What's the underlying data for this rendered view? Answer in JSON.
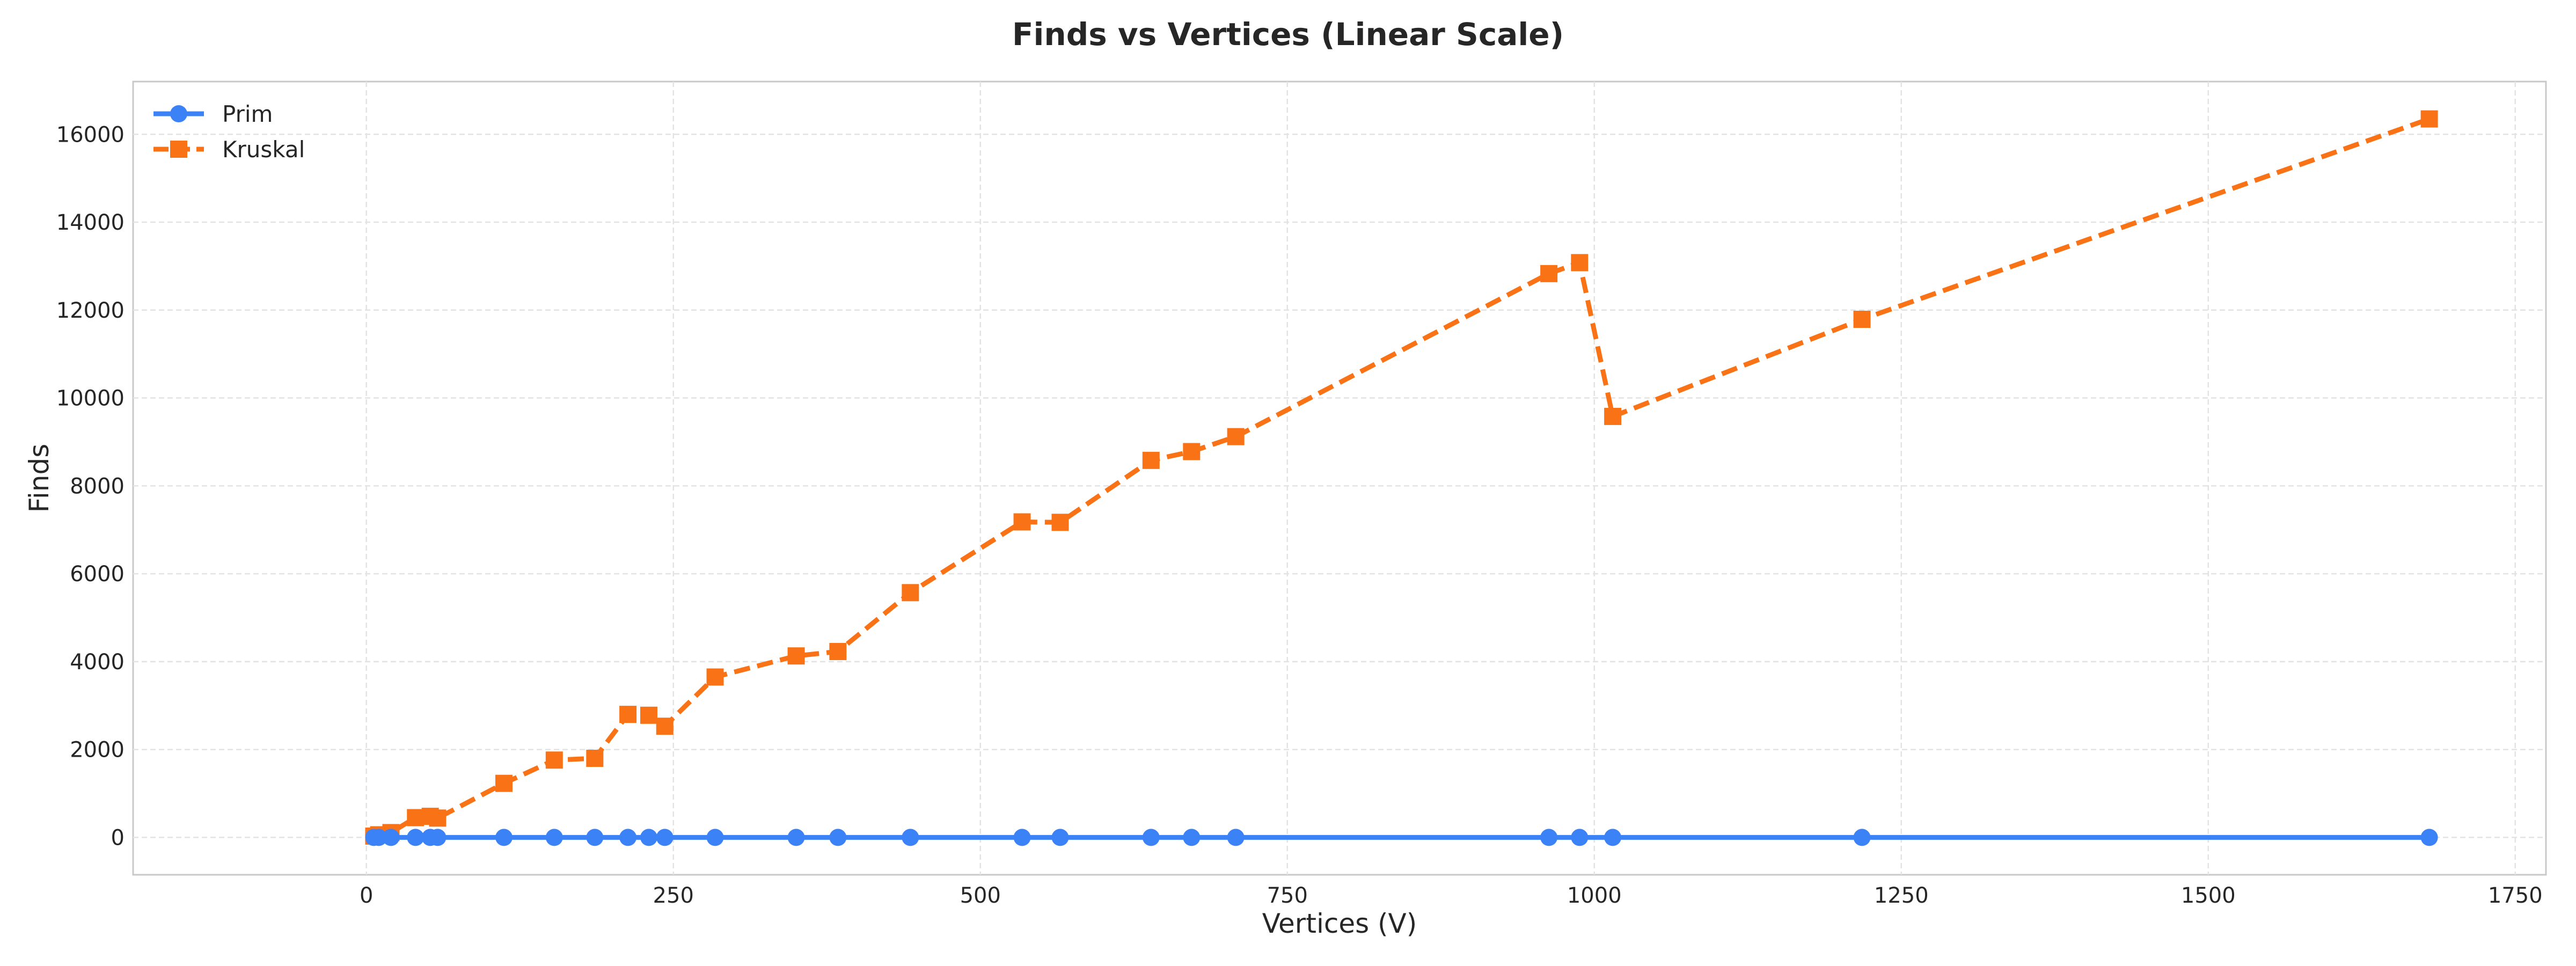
{
  "chart_data": {
    "type": "line",
    "title": "Finds vs Vertices (Linear Scale)",
    "xlabel": "Vertices (V)",
    "ylabel": "Finds",
    "xlim": [
      -190,
      1775
    ],
    "ylim": [
      -850,
      17200
    ],
    "xticks": [
      0,
      250,
      500,
      750,
      1000,
      1250,
      1500,
      1750
    ],
    "yticks": [
      0,
      2000,
      4000,
      6000,
      8000,
      10000,
      12000,
      14000,
      16000
    ],
    "grid": true,
    "legend_position": "top-left",
    "series": [
      {
        "name": "Prim",
        "color": "#3b82f6",
        "marker": "circle",
        "line_style": "solid",
        "x": [
          6,
          10,
          20,
          40,
          52,
          58,
          112,
          153,
          186,
          213,
          230,
          243,
          284,
          350,
          384,
          443,
          534,
          565,
          639,
          672,
          708,
          963,
          988,
          1015,
          1218,
          1680
        ],
        "y": [
          0,
          0,
          0,
          0,
          0,
          0,
          0,
          0,
          0,
          0,
          0,
          0,
          0,
          0,
          0,
          0,
          0,
          0,
          0,
          0,
          0,
          0,
          0,
          0,
          0,
          0
        ]
      },
      {
        "name": "Kruskal",
        "color": "#f97316",
        "marker": "square",
        "line_style": "dashed",
        "x": [
          6,
          10,
          20,
          40,
          52,
          58,
          112,
          153,
          186,
          213,
          230,
          243,
          284,
          350,
          384,
          443,
          534,
          565,
          639,
          672,
          708,
          963,
          988,
          1015,
          1218,
          1680
        ],
        "y": [
          30,
          60,
          110,
          450,
          480,
          440,
          1230,
          1760,
          1800,
          2800,
          2780,
          2530,
          3650,
          4130,
          4230,
          5570,
          7180,
          7170,
          8580,
          8780,
          9120,
          12830,
          13080,
          9580,
          11790,
          16350
        ]
      }
    ]
  }
}
